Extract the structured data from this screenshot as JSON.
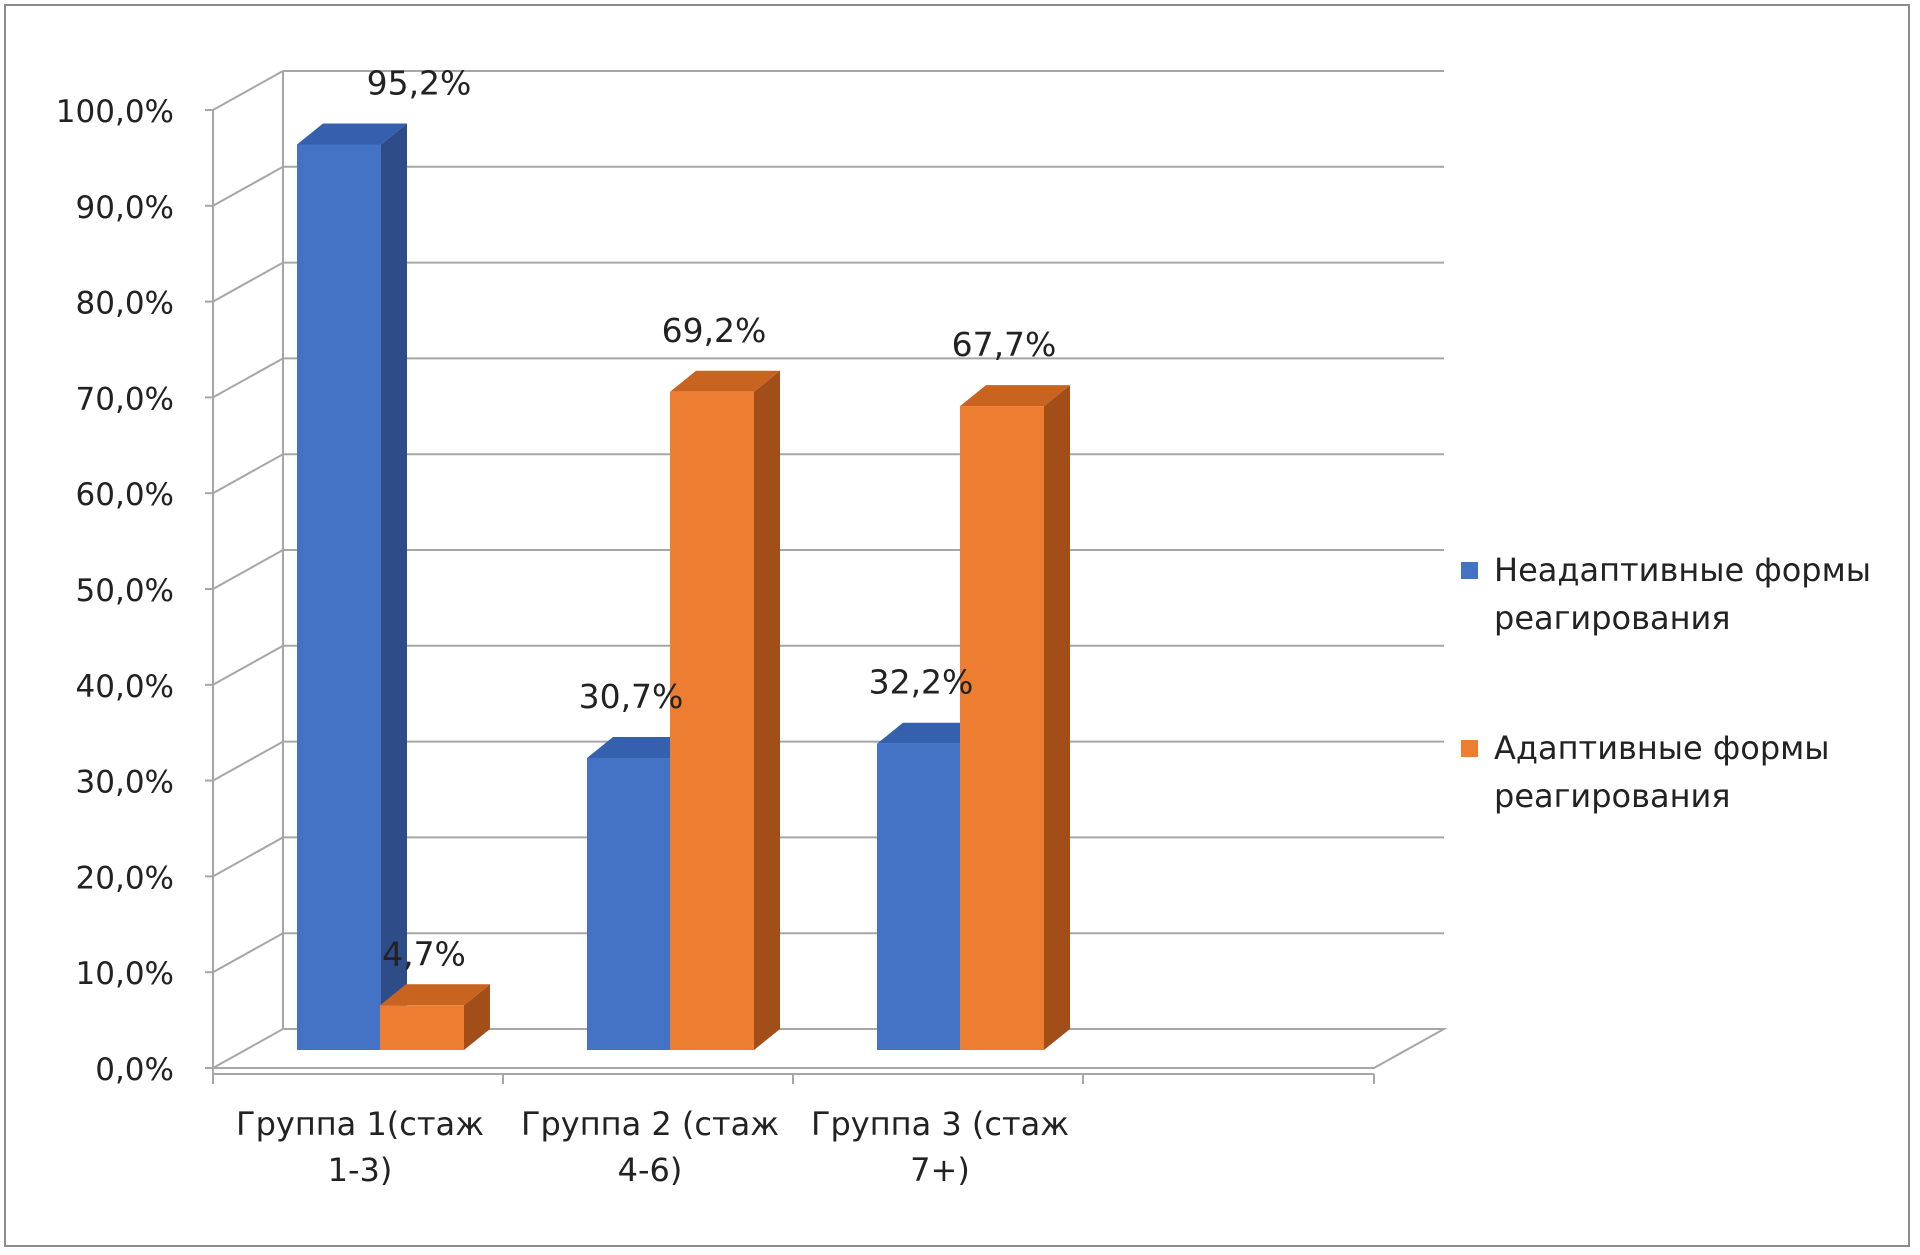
{
  "chart_data": {
    "type": "bar",
    "three_d": true,
    "categories": [
      [
        "Группа 1(стаж",
        "1-3)"
      ],
      [
        "Группа 2 (стаж",
        "4-6)"
      ],
      [
        "Группа 3 (стаж",
        "7+)"
      ]
    ],
    "series": [
      {
        "name": [
          "Неадаптивные формы",
          "реагирования"
        ],
        "color": "#4472C4",
        "side_color": "#2E4C88",
        "top_color": "#3560AE",
        "values": [
          95.2,
          30.7,
          32.2
        ],
        "labels": [
          "95,2%",
          "30,7%",
          "32,2%"
        ]
      },
      {
        "name": [
          "Адаптивные формы",
          "реагирования"
        ],
        "color": "#ED7D31",
        "side_color": "#A24E19",
        "top_color": "#C96420",
        "values": [
          4.7,
          69.2,
          67.7
        ],
        "labels": [
          "4,7%",
          "69,2%",
          "67,7%"
        ]
      }
    ],
    "y_ticks": [
      "0,0%",
      "10,0%",
      "20,0%",
      "30,0%",
      "40,0%",
      "50,0%",
      "60,0%",
      "70,0%",
      "80,0%",
      "90,0%",
      "100,0%"
    ],
    "ylim": [
      0,
      100
    ],
    "grid": true,
    "legend_position": "right"
  }
}
